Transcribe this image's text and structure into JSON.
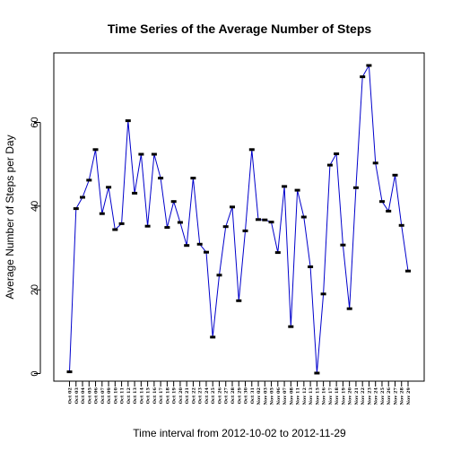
{
  "chart_data": {
    "type": "line",
    "title": "Time Series of the Average Number of Steps",
    "xlabel": "Time interval from 2012-10-02 to 2012-11-29",
    "ylabel": "Average Number of Steps per Day",
    "ylim": [
      0,
      75
    ],
    "yticks": [
      0,
      20,
      40,
      60
    ],
    "grid": false,
    "legend": "none",
    "line_color": "#0000cc",
    "point_color": "#000000",
    "categories": [
      "Oct 02",
      "Oct 03",
      "Oct 04",
      "Oct 05",
      "Oct 06",
      "Oct 07",
      "Oct 09",
      "Oct 10",
      "Oct 11",
      "Oct 12",
      "Oct 13",
      "Oct 14",
      "Oct 15",
      "Oct 16",
      "Oct 17",
      "Oct 18",
      "Oct 19",
      "Oct 20",
      "Oct 21",
      "Oct 22",
      "Oct 23",
      "Oct 24",
      "Oct 25",
      "Oct 26",
      "Oct 27",
      "Oct 28",
      "Oct 29",
      "Oct 30",
      "Oct 31",
      "Nov 02",
      "Nov 03",
      "Nov 05",
      "Nov 06",
      "Nov 07",
      "Nov 08",
      "Nov 11",
      "Nov 12",
      "Nov 13",
      "Nov 15",
      "Nov 16",
      "Nov 17",
      "Nov 18",
      "Nov 19",
      "Nov 20",
      "Nov 21",
      "Nov 22",
      "Nov 23",
      "Nov 24",
      "Nov 25",
      "Nov 26",
      "Nov 27",
      "Nov 28",
      "Nov 29"
    ],
    "values": [
      0.4,
      39.4,
      42.1,
      46.2,
      53.5,
      38.2,
      44.5,
      34.4,
      35.8,
      60.4,
      43.1,
      52.4,
      35.2,
      52.4,
      46.7,
      34.9,
      41.1,
      36.1,
      30.6,
      46.7,
      30.9,
      29.0,
      8.7,
      23.5,
      35.1,
      39.8,
      17.4,
      34.1,
      53.5,
      36.8,
      36.7,
      36.2,
      28.9,
      44.7,
      11.2,
      43.8,
      37.4,
      25.5,
      0.1,
      19.0,
      49.8,
      52.5,
      30.7,
      15.5,
      44.4,
      70.9,
      73.6,
      50.3,
      41.1,
      38.8,
      47.4,
      35.4,
      24.5
    ]
  }
}
